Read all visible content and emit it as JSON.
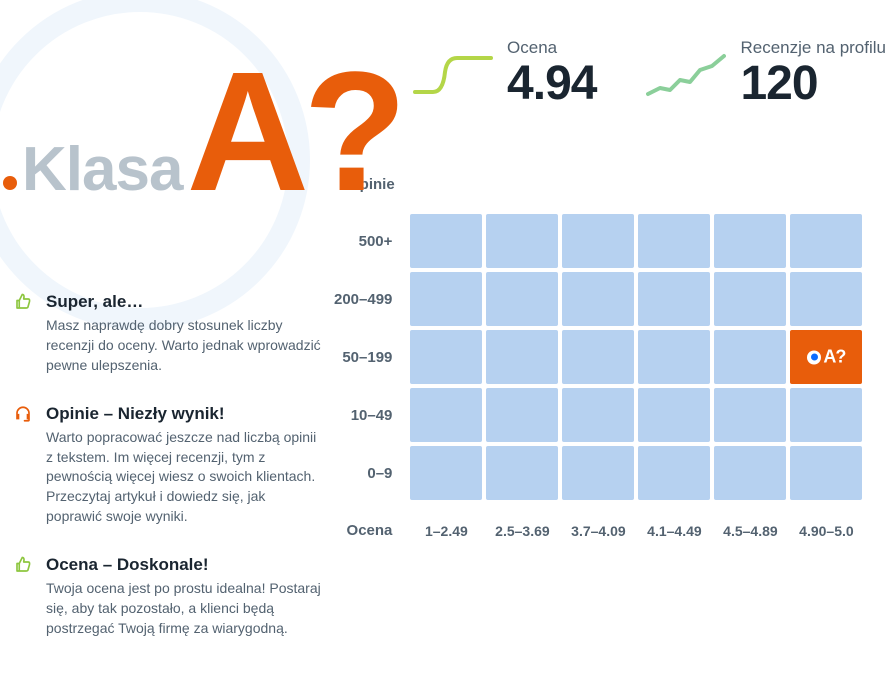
{
  "grade": {
    "prefix": "Klasa",
    "value": "A?"
  },
  "stats": {
    "rating": {
      "label": "Ocena",
      "value": "4.94",
      "spark_color": "#b4d648"
    },
    "reviews": {
      "label": "Recenzje na profilu",
      "value": "120",
      "spark_color": "#8bcf9a"
    }
  },
  "feedback": [
    {
      "icon": "thumb-up",
      "icon_color": "#8dc63f",
      "title": "Super, ale…",
      "desc": "Masz naprawdę dobry stosunek liczby recenzji do oceny. Warto jednak wprowadzić pewne ulepszenia."
    },
    {
      "icon": "headset",
      "icon_color": "#e85d0b",
      "title": "Opinie – Niezły wynik!",
      "desc": "Warto popracować jeszcze nad liczbą opinii z tekstem. Im więcej recenzji, tym z pewnością więcej wiesz o swoich klientach. Przeczytaj artykuł i dowiedz się, jak poprawić swoje wyniki."
    },
    {
      "icon": "thumb-up",
      "icon_color": "#8dc63f",
      "title": "Ocena – Doskonale!",
      "desc": "Twoja ocena jest po prostu idealna! Postaraj się, aby tak pozostało, a klienci będą postrzegać Twoją firmę za wiarygodną."
    }
  ],
  "heatmap": {
    "y_axis_title": "Opinie",
    "x_axis_title": "Ocena",
    "row_labels": [
      "500+",
      "200–499",
      "50–199",
      "10–49",
      "0–9"
    ],
    "col_labels": [
      "1–2.49",
      "2.5–3.69",
      "3.7–4.09",
      "4.1–4.49",
      "4.5–4.89",
      "4.90–5.0"
    ],
    "cell_color": "#b6d1f0",
    "active_cell_color": "#e85d0b",
    "marker_ring_color": "#ffffff",
    "marker_dot_color": "#0b6cff",
    "active": {
      "row": 2,
      "col": 5,
      "label": "A?"
    }
  },
  "colors": {
    "accent": "#e85d0b",
    "muted": "#b8c3cc",
    "text": "#1a2530",
    "subtext": "#536270",
    "circle": "#f0f6fc"
  }
}
